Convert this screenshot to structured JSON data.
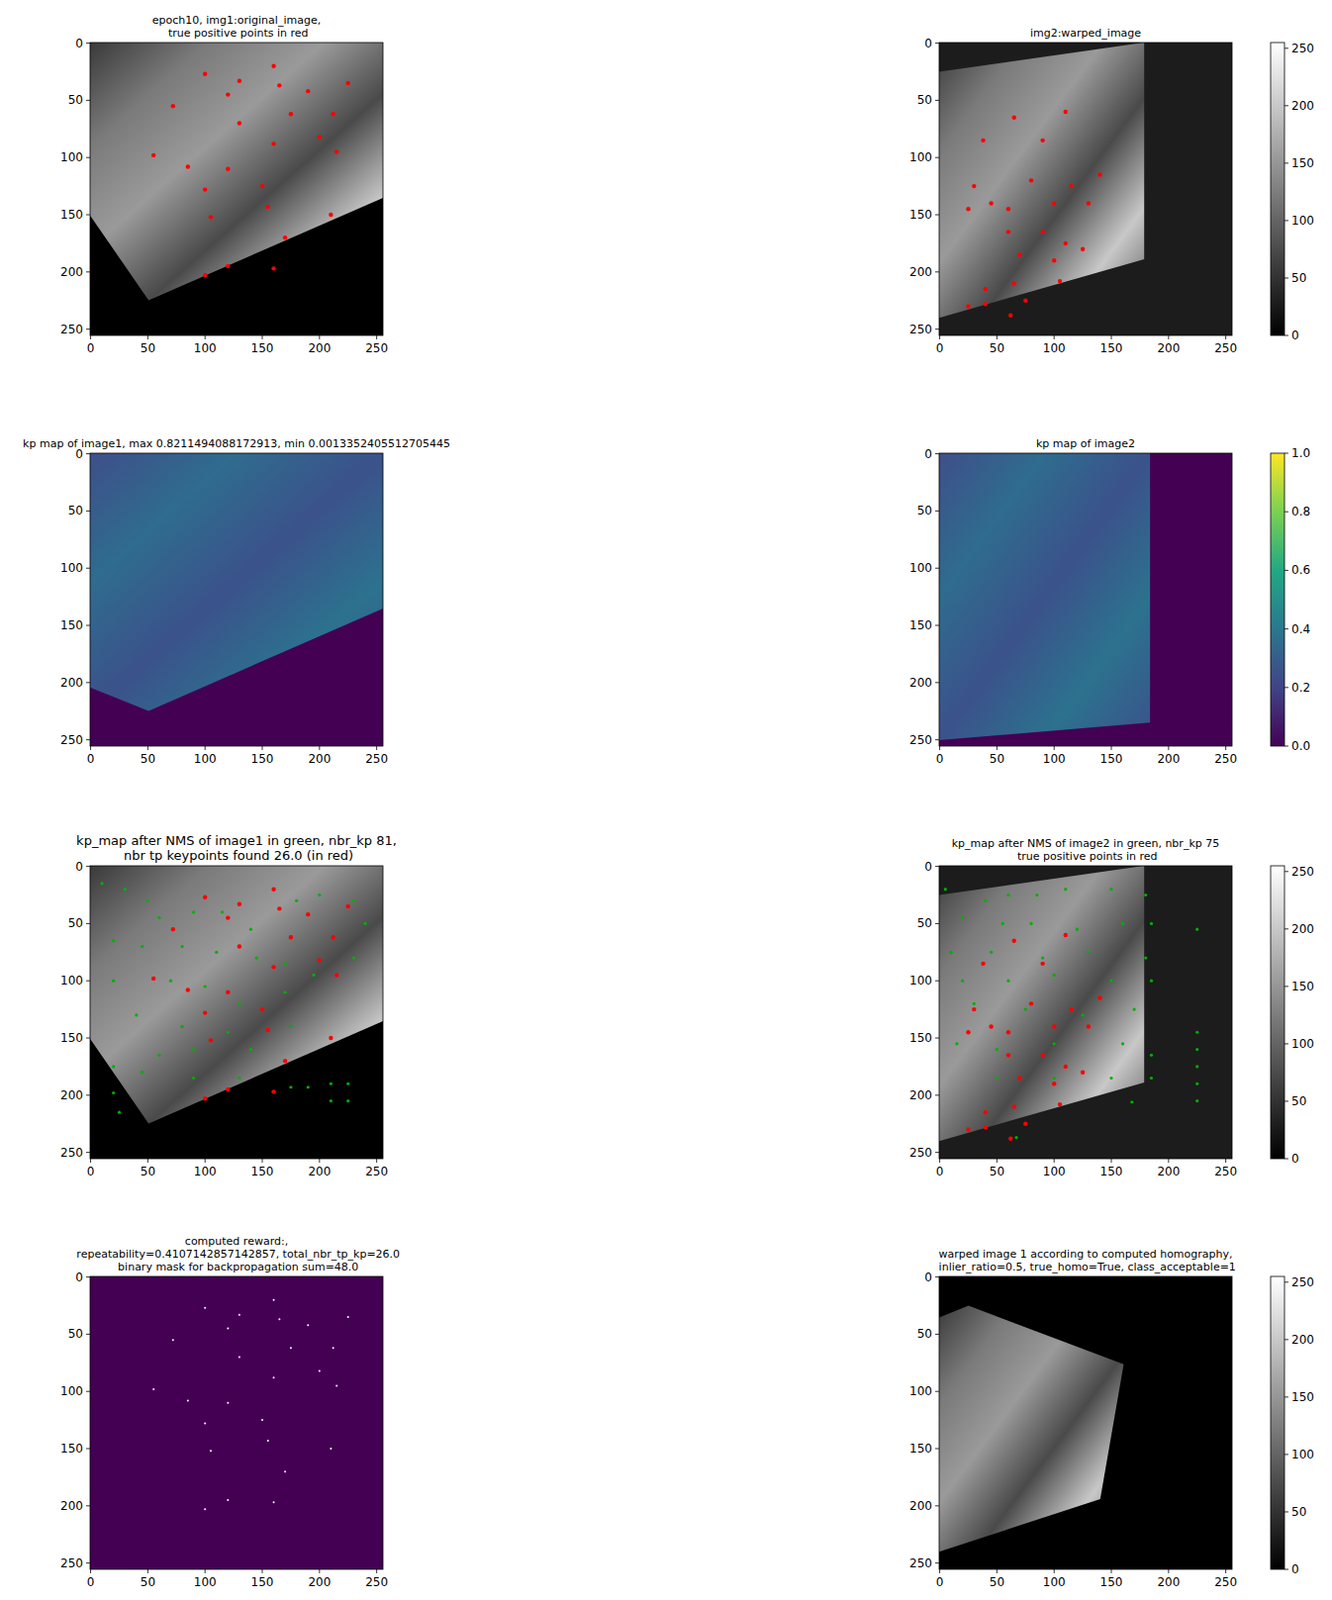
{
  "chart_data": [
    {
      "type": "image",
      "title": "epoch10, img1:original_image,\n true positive points in red",
      "xlim": [
        -0.5,
        255.5
      ],
      "ylim": [
        255.5,
        -0.5
      ],
      "xticks": [
        0,
        50,
        100,
        150,
        200,
        250
      ],
      "yticks": [
        0,
        50,
        100,
        150,
        200,
        250
      ],
      "series": [
        {
          "type": "scatter",
          "color": "#ff0000",
          "x": [
            100,
            160,
            130,
            120,
            165,
            190,
            225,
            72,
            130,
            175,
            212,
            215,
            55,
            85,
            120,
            160,
            200,
            100,
            150,
            105,
            155,
            210,
            170,
            120,
            100,
            160
          ],
          "values": [
            27,
            20,
            33,
            45,
            37,
            42,
            35,
            55,
            70,
            62,
            62,
            95,
            98,
            108,
            110,
            88,
            82,
            128,
            125,
            152,
            143,
            150,
            170,
            195,
            203,
            197
          ]
        }
      ]
    },
    {
      "type": "image",
      "title": "img2:warped_image",
      "xlim": [
        -0.5,
        255.5
      ],
      "ylim": [
        255.5,
        -0.5
      ],
      "xticks": [
        0,
        50,
        100,
        150,
        200,
        250
      ],
      "yticks": [
        0,
        50,
        100,
        150,
        200,
        250
      ],
      "colorbar": {
        "range": [
          0,
          255
        ],
        "ticks": [
          0,
          50,
          100,
          150,
          200,
          250
        ],
        "color": "gray"
      },
      "series": [
        {
          "type": "scatter",
          "color": "#ff0000",
          "x": [
            65,
            110,
            38,
            90,
            30,
            80,
            115,
            140,
            25,
            45,
            60,
            100,
            130,
            60,
            90,
            110,
            70,
            100,
            40,
            65,
            105,
            25,
            40,
            62,
            75,
            125
          ],
          "values": [
            65,
            60,
            85,
            85,
            125,
            120,
            125,
            115,
            145,
            140,
            145,
            140,
            140,
            165,
            165,
            175,
            185,
            190,
            215,
            210,
            208,
            230,
            228,
            238,
            225,
            180
          ]
        }
      ]
    },
    {
      "type": "image",
      "title": "kp map of image1, max 0.8211494088172913, min 0.0013352405512705445",
      "xlim": [
        -0.5,
        255.5
      ],
      "ylim": [
        255.5,
        -0.5
      ],
      "xticks": [
        0,
        50,
        100,
        150,
        200,
        250
      ],
      "yticks": [
        0,
        50,
        100,
        150,
        200,
        250
      ]
    },
    {
      "type": "image",
      "title": "kp map of image2",
      "xlim": [
        -0.5,
        255.5
      ],
      "ylim": [
        255.5,
        -0.5
      ],
      "xticks": [
        0,
        50,
        100,
        150,
        200,
        250
      ],
      "yticks": [
        0,
        50,
        100,
        150,
        200,
        250
      ],
      "colorbar": {
        "range": [
          0,
          1
        ],
        "ticks": [
          {
            "value": 0,
            "label": "0.0"
          },
          0.2,
          0.4,
          0.6,
          0.8,
          {
            "value": 1,
            "label": "1.0"
          }
        ],
        "color": "viridis"
      }
    },
    {
      "type": "image",
      "title": "kp_map after NMS of image1 in green, nbr_kp 81,\n nbr tp keypoints found 26.0 (in red)",
      "xlim": [
        -0.5,
        255.5
      ],
      "ylim": [
        255.5,
        -0.5
      ],
      "xticks": [
        0,
        50,
        100,
        150,
        200,
        250
      ],
      "yticks": [
        0,
        50,
        100,
        150,
        200,
        250
      ],
      "series": [
        {
          "type": "scatter",
          "color": "#00b000",
          "x": [
            10,
            30,
            50,
            60,
            90,
            115,
            140,
            180,
            200,
            230,
            240,
            20,
            45,
            80,
            110,
            145,
            170,
            195,
            230,
            20,
            70,
            100,
            130,
            170,
            40,
            80,
            120,
            175,
            60,
            90,
            140,
            20,
            45,
            90,
            130,
            175,
            20,
            25,
            210,
            225,
            210,
            225,
            190
          ],
          "values": [
            15,
            20,
            30,
            45,
            40,
            40,
            55,
            30,
            25,
            30,
            50,
            65,
            70,
            70,
            75,
            80,
            85,
            95,
            80,
            100,
            100,
            105,
            120,
            110,
            130,
            140,
            145,
            140,
            165,
            160,
            160,
            175,
            180,
            185,
            185,
            193,
            198,
            215,
            190,
            190,
            205,
            205,
            193
          ]
        },
        {
          "type": "scatter",
          "color": "#ff0000",
          "x": [
            100,
            160,
            130,
            120,
            165,
            190,
            225,
            72,
            130,
            175,
            212,
            215,
            55,
            85,
            120,
            160,
            200,
            100,
            150,
            105,
            155,
            210,
            170,
            120,
            100,
            160
          ],
          "values": [
            27,
            20,
            33,
            45,
            37,
            42,
            35,
            55,
            70,
            62,
            62,
            95,
            98,
            108,
            110,
            88,
            82,
            128,
            125,
            152,
            143,
            150,
            170,
            195,
            203,
            197
          ]
        }
      ]
    },
    {
      "type": "image",
      "title": "kp_map after NMS of image2 in green, nbr_kp 75\n true positive points in red",
      "xlim": [
        -0.5,
        255.5
      ],
      "ylim": [
        255.5,
        -0.5
      ],
      "xticks": [
        0,
        50,
        100,
        150,
        200,
        250
      ],
      "yticks": [
        0,
        50,
        100,
        150,
        200,
        250
      ],
      "colorbar": {
        "range": [
          0,
          255
        ],
        "ticks": [
          0,
          50,
          100,
          150,
          200,
          250
        ],
        "color": "gray"
      },
      "series": [
        {
          "type": "scatter",
          "color": "#00b000",
          "x": [
            5,
            40,
            60,
            85,
            110,
            150,
            180,
            20,
            55,
            80,
            120,
            160,
            185,
            10,
            45,
            90,
            130,
            180,
            20,
            60,
            100,
            150,
            185,
            30,
            75,
            125,
            170,
            15,
            50,
            100,
            160,
            185,
            50,
            100,
            150,
            185,
            225,
            225,
            225,
            225,
            225,
            225,
            168,
            67
          ],
          "values": [
            20,
            30,
            25,
            25,
            20,
            20,
            25,
            45,
            50,
            50,
            55,
            50,
            50,
            75,
            75,
            80,
            75,
            80,
            100,
            100,
            95,
            100,
            100,
            120,
            125,
            130,
            125,
            155,
            160,
            155,
            155,
            165,
            185,
            185,
            185,
            185,
            55,
            145,
            160,
            175,
            190,
            205,
            206,
            237
          ]
        },
        {
          "type": "scatter",
          "color": "#ff0000",
          "x": [
            65,
            110,
            38,
            90,
            30,
            80,
            115,
            140,
            25,
            45,
            60,
            100,
            130,
            60,
            90,
            110,
            70,
            100,
            40,
            65,
            105,
            25,
            40,
            62,
            75,
            125
          ],
          "values": [
            65,
            60,
            85,
            85,
            125,
            120,
            125,
            115,
            145,
            140,
            145,
            140,
            140,
            165,
            165,
            175,
            185,
            190,
            215,
            210,
            208,
            230,
            228,
            238,
            225,
            180
          ]
        }
      ]
    },
    {
      "type": "image",
      "title": "computed reward:,\n repeatability=0.4107142857142857, total_nbr_tp_kp=26.0\n binary mask for backpropagation sum=48.0",
      "xlim": [
        -0.5,
        255.5
      ],
      "ylim": [
        255.5,
        -0.5
      ],
      "xticks": [
        0,
        50,
        100,
        150,
        200,
        250
      ],
      "yticks": [
        0,
        50,
        100,
        150,
        200,
        250
      ],
      "series": [
        {
          "type": "scatter",
          "color": "#ffffff",
          "x": [
            100,
            160,
            130,
            120,
            165,
            190,
            225,
            72,
            130,
            175,
            212,
            215,
            55,
            85,
            120,
            160,
            200,
            100,
            150,
            105,
            155,
            210,
            170,
            120,
            100,
            160
          ],
          "values": [
            27,
            20,
            33,
            45,
            37,
            42,
            35,
            55,
            70,
            62,
            62,
            95,
            98,
            108,
            110,
            88,
            82,
            128,
            125,
            152,
            143,
            150,
            170,
            195,
            203,
            197
          ]
        }
      ]
    },
    {
      "type": "image",
      "title": "warped image 1 according to computed homography,\n inlier_ratio=0.5, true_homo=True, class_acceptable=1",
      "xlim": [
        -0.5,
        255.5
      ],
      "ylim": [
        255.5,
        -0.5
      ],
      "xticks": [
        0,
        50,
        100,
        150,
        200,
        250
      ],
      "yticks": [
        0,
        50,
        100,
        150,
        200,
        250
      ],
      "colorbar": {
        "range": [
          0,
          255
        ],
        "ticks": [
          0,
          50,
          100,
          150,
          200,
          250
        ],
        "color": "gray"
      }
    }
  ]
}
